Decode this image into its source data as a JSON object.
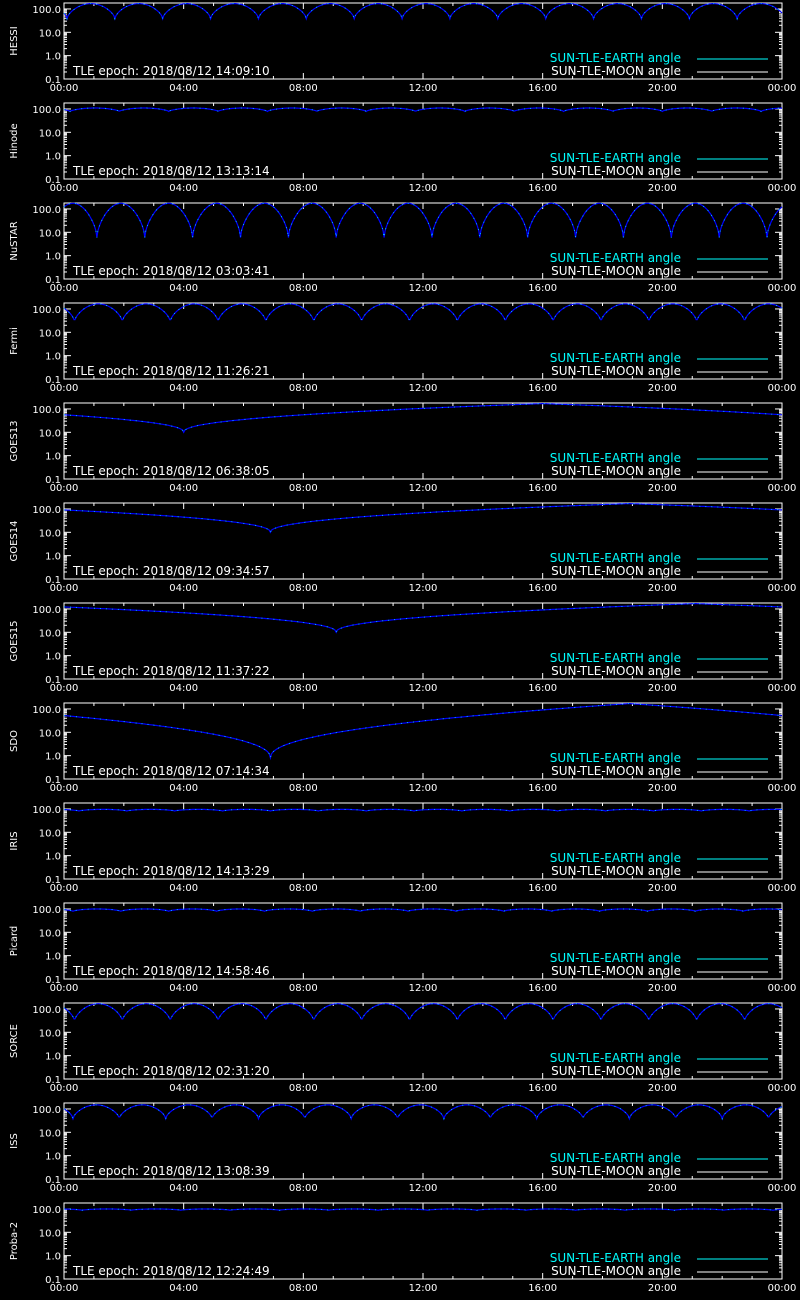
{
  "colors": {
    "background": "#000000",
    "axes": "#ffffff",
    "earth": "#00ffff",
    "moon": "#ffffff",
    "curve": "#0000ff"
  },
  "legend": {
    "earth_label": "SUN-TLE-EARTH angle",
    "moon_label": "SUN-TLE-MOON angle",
    "placement": "bottom-right"
  },
  "epoch_prefix": "TLE epoch: ",
  "chart_data": [
    {
      "type": "line",
      "ylabel": "HESSI",
      "epoch": "2018/08/12 14:09:10",
      "yscale": "log",
      "ylim": [
        0.1,
        180
      ],
      "xlim": [
        "00:00",
        "24:00"
      ],
      "x_ticks": [
        "00:00",
        "04:00",
        "08:00",
        "12:00",
        "16:00",
        "20:00",
        "00:00"
      ],
      "y_ticks": [
        "100.0",
        "10.0",
        "1.0",
        "0.1"
      ],
      "pattern": {
        "kind": "periodic",
        "period_hours": 1.6,
        "min_value": 38,
        "max_value": 170,
        "phase_hours": 0.1
      }
    },
    {
      "type": "line",
      "ylabel": "Hinode",
      "epoch": "2018/08/12 13:13:14",
      "yscale": "log",
      "ylim": [
        0.1,
        180
      ],
      "xlim": [
        "00:00",
        "24:00"
      ],
      "x_ticks": [
        "00:00",
        "04:00",
        "08:00",
        "12:00",
        "16:00",
        "20:00",
        "00:00"
      ],
      "y_ticks": [
        "100.0",
        "10.0",
        "1.0",
        "0.1"
      ],
      "pattern": {
        "kind": "periodic",
        "period_hours": 1.65,
        "min_value": 78,
        "max_value": 110,
        "phase_hours": 0.2
      }
    },
    {
      "type": "line",
      "ylabel": "NuSTAR",
      "epoch": "2018/08/12 03:03:41",
      "yscale": "log",
      "ylim": [
        0.1,
        180
      ],
      "xlim": [
        "00:00",
        "24:00"
      ],
      "x_ticks": [
        "00:00",
        "04:00",
        "08:00",
        "12:00",
        "16:00",
        "20:00",
        "00:00"
      ],
      "y_ticks": [
        "100.0",
        "10.0",
        "1.0",
        "0.1"
      ],
      "pattern": {
        "kind": "periodic",
        "period_hours": 1.6,
        "min_value": 6,
        "max_value": 175,
        "phase_hours": 1.1
      }
    },
    {
      "type": "line",
      "ylabel": "Fermi",
      "epoch": "2018/08/12 11:26:21",
      "yscale": "log",
      "ylim": [
        0.1,
        180
      ],
      "xlim": [
        "00:00",
        "24:00"
      ],
      "x_ticks": [
        "00:00",
        "04:00",
        "08:00",
        "12:00",
        "16:00",
        "20:00",
        "00:00"
      ],
      "y_ticks": [
        "100.0",
        "10.0",
        "1.0",
        "0.1"
      ],
      "pattern": {
        "kind": "periodic",
        "period_hours": 1.6,
        "min_value": 28,
        "max_value": 165,
        "phase_hours": 0.35
      }
    },
    {
      "type": "line",
      "ylabel": "GOES13",
      "epoch": "2018/08/12 06:38:05",
      "yscale": "log",
      "ylim": [
        0.1,
        180
      ],
      "xlim": [
        "00:00",
        "24:00"
      ],
      "x_ticks": [
        "00:00",
        "04:00",
        "08:00",
        "12:00",
        "16:00",
        "20:00",
        "00:00"
      ],
      "y_ticks": [
        "100.0",
        "10.0",
        "1.0",
        "0.1"
      ],
      "pattern": {
        "kind": "daily",
        "min_hour": 4.0,
        "min_value": 10,
        "max_value": 170
      }
    },
    {
      "type": "line",
      "ylabel": "GOES14",
      "epoch": "2018/08/12 09:34:57",
      "yscale": "log",
      "ylim": [
        0.1,
        180
      ],
      "xlim": [
        "00:00",
        "24:00"
      ],
      "x_ticks": [
        "00:00",
        "04:00",
        "08:00",
        "12:00",
        "16:00",
        "20:00",
        "00:00"
      ],
      "y_ticks": [
        "100.0",
        "10.0",
        "1.0",
        "0.1"
      ],
      "pattern": {
        "kind": "daily",
        "min_hour": 6.9,
        "min_value": 10,
        "max_value": 170
      }
    },
    {
      "type": "line",
      "ylabel": "GOES15",
      "epoch": "2018/08/12 11:37:22",
      "yscale": "log",
      "ylim": [
        0.1,
        180
      ],
      "xlim": [
        "00:00",
        "24:00"
      ],
      "x_ticks": [
        "00:00",
        "04:00",
        "08:00",
        "12:00",
        "16:00",
        "20:00",
        "00:00"
      ],
      "y_ticks": [
        "100.0",
        "10.0",
        "1.0",
        "0.1"
      ],
      "pattern": {
        "kind": "daily",
        "min_hour": 9.1,
        "min_value": 10,
        "max_value": 170
      }
    },
    {
      "type": "line",
      "ylabel": "SDO",
      "epoch": "2018/08/12 07:14:34",
      "yscale": "log",
      "ylim": [
        0.1,
        180
      ],
      "xlim": [
        "00:00",
        "24:00"
      ],
      "x_ticks": [
        "00:00",
        "04:00",
        "08:00",
        "12:00",
        "16:00",
        "20:00",
        "00:00"
      ],
      "y_ticks": [
        "100.0",
        "10.0",
        "1.0",
        "0.1"
      ],
      "pattern": {
        "kind": "daily",
        "min_hour": 6.9,
        "min_value": 0.8,
        "max_value": 170
      }
    },
    {
      "type": "line",
      "ylabel": "IRIS",
      "epoch": "2018/08/12 14:13:29",
      "yscale": "log",
      "ylim": [
        0.1,
        180
      ],
      "xlim": [
        "00:00",
        "24:00"
      ],
      "x_ticks": [
        "00:00",
        "04:00",
        "08:00",
        "12:00",
        "16:00",
        "20:00",
        "00:00"
      ],
      "y_ticks": [
        "100.0",
        "10.0",
        "1.0",
        "0.1"
      ],
      "pattern": {
        "kind": "periodic",
        "period_hours": 1.6,
        "min_value": 82,
        "max_value": 96,
        "phase_hours": 0.5
      }
    },
    {
      "type": "line",
      "ylabel": "Picard",
      "epoch": "2018/08/12 14:58:46",
      "yscale": "log",
      "ylim": [
        0.1,
        180
      ],
      "xlim": [
        "00:00",
        "24:00"
      ],
      "x_ticks": [
        "00:00",
        "04:00",
        "08:00",
        "12:00",
        "16:00",
        "20:00",
        "00:00"
      ],
      "y_ticks": [
        "100.0",
        "10.0",
        "1.0",
        "0.1"
      ],
      "pattern": {
        "kind": "periodic",
        "period_hours": 1.6,
        "min_value": 80,
        "max_value": 100,
        "phase_hours": 0.3
      }
    },
    {
      "type": "line",
      "ylabel": "SORCE",
      "epoch": "2018/08/12 02:31:20",
      "yscale": "log",
      "ylim": [
        0.1,
        180
      ],
      "xlim": [
        "00:00",
        "24:00"
      ],
      "x_ticks": [
        "00:00",
        "04:00",
        "08:00",
        "12:00",
        "16:00",
        "20:00",
        "00:00"
      ],
      "y_ticks": [
        "100.0",
        "10.0",
        "1.0",
        "0.1"
      ],
      "pattern": {
        "kind": "periodic",
        "period_hours": 1.6,
        "min_value": 30,
        "max_value": 168,
        "phase_hours": 0.35
      }
    },
    {
      "type": "line",
      "ylabel": "ISS",
      "epoch": "2018/08/12 13:08:39",
      "yscale": "log",
      "ylim": [
        0.1,
        180
      ],
      "xlim": [
        "00:00",
        "24:00"
      ],
      "x_ticks": [
        "00:00",
        "04:00",
        "08:00",
        "12:00",
        "16:00",
        "20:00",
        "00:00"
      ],
      "y_ticks": [
        "100.0",
        "10.0",
        "1.0",
        "0.1"
      ],
      "pattern": {
        "kind": "periodic",
        "period_hours": 1.55,
        "min_value": 38,
        "max_value": 150,
        "phase_hours": 0.3
      }
    },
    {
      "type": "line",
      "ylabel": "Proba-2",
      "epoch": "2018/08/12 12:24:49",
      "yscale": "log",
      "ylim": [
        0.1,
        180
      ],
      "xlim": [
        "00:00",
        "24:00"
      ],
      "x_ticks": [
        "00:00",
        "04:00",
        "08:00",
        "12:00",
        "16:00",
        "20:00",
        "00:00"
      ],
      "y_ticks": [
        "100.0",
        "10.0",
        "1.0",
        "0.1"
      ],
      "pattern": {
        "kind": "periodic",
        "period_hours": 1.65,
        "min_value": 88,
        "max_value": 100,
        "phase_hours": 0.6
      }
    }
  ]
}
